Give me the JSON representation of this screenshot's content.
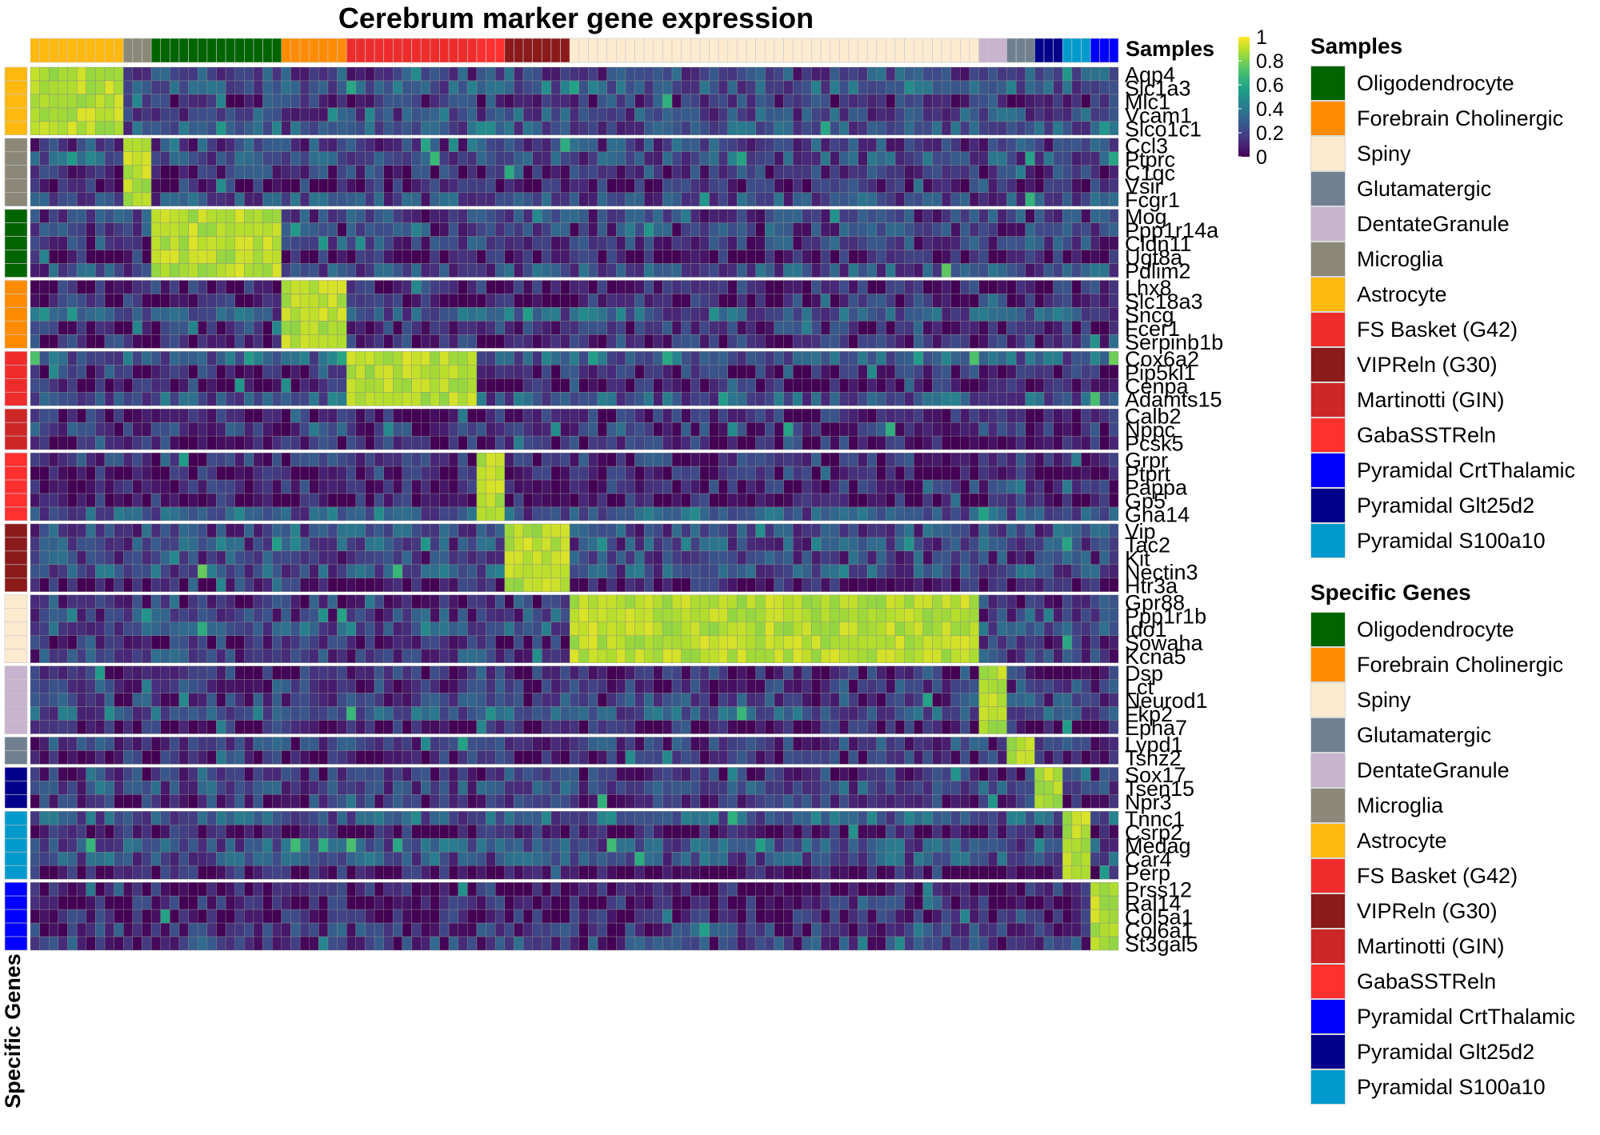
{
  "title": "Cerebrum marker gene expression",
  "samples_annotation_label": "Samples",
  "genes_annotation_label": "Specific Genes",
  "colorbar": {
    "ticks": [
      "1",
      "0.8",
      "0.6",
      "0.4",
      "0.2",
      "0"
    ],
    "range": [
      0,
      1
    ],
    "palette": "viridis"
  },
  "legends": [
    {
      "title": "Samples",
      "items": [
        {
          "label": "Oligodendrocyte",
          "color": "#006400"
        },
        {
          "label": "Forebrain Cholinergic",
          "color": "#FF8C00"
        },
        {
          "label": "Spiny",
          "color": "#FDEBD0"
        },
        {
          "label": "Glutamatergic",
          "color": "#708090"
        },
        {
          "label": "DentateGranule",
          "color": "#C8B4CE"
        },
        {
          "label": "Microglia",
          "color": "#8B8878"
        },
        {
          "label": "Astrocyte",
          "color": "#FFB90F"
        },
        {
          "label": "FS Basket (G42)",
          "color": "#EE2C2C"
        },
        {
          "label": "VIPReln (G30)",
          "color": "#8B1A1A"
        },
        {
          "label": "Martinotti (GIN)",
          "color": "#CD2626"
        },
        {
          "label": "GabaSSTReln",
          "color": "#FF3030"
        },
        {
          "label": "Pyramidal CrtThalamic",
          "color": "#0000FF"
        },
        {
          "label": "Pyramidal Glt25d2",
          "color": "#00008B"
        },
        {
          "label": "Pyramidal S100a10",
          "color": "#009ACD"
        }
      ]
    },
    {
      "title": "Specific Genes",
      "items": [
        {
          "label": "Oligodendrocyte",
          "color": "#006400"
        },
        {
          "label": "Forebrain Cholinergic",
          "color": "#FF8C00"
        },
        {
          "label": "Spiny",
          "color": "#FDEBD0"
        },
        {
          "label": "Glutamatergic",
          "color": "#708090"
        },
        {
          "label": "DentateGranule",
          "color": "#C8B4CE"
        },
        {
          "label": "Microglia",
          "color": "#8B8878"
        },
        {
          "label": "Astrocyte",
          "color": "#FFB90F"
        },
        {
          "label": "FS Basket (G42)",
          "color": "#EE2C2C"
        },
        {
          "label": "VIPReln (G30)",
          "color": "#8B1A1A"
        },
        {
          "label": "Martinotti (GIN)",
          "color": "#CD2626"
        },
        {
          "label": "GabaSSTReln",
          "color": "#FF3030"
        },
        {
          "label": "Pyramidal CrtThalamic",
          "color": "#0000FF"
        },
        {
          "label": "Pyramidal Glt25d2",
          "color": "#00008B"
        },
        {
          "label": "Pyramidal S100a10",
          "color": "#009ACD"
        }
      ]
    }
  ],
  "chart_data": {
    "type": "heatmap",
    "title": "Cerebrum marker gene expression",
    "value_range": [
      0,
      1
    ],
    "color_scale": "viridis",
    "sample_groups": [
      {
        "group": "Astrocyte",
        "n": 10
      },
      {
        "group": "Microglia",
        "n": 3
      },
      {
        "group": "Oligodendrocyte",
        "n": 14
      },
      {
        "group": "Forebrain Cholinergic",
        "n": 7
      },
      {
        "group": "FS Basket (G42)",
        "n": 14
      },
      {
        "group": "GabaSSTReln",
        "n": 3
      },
      {
        "group": "VIPReln (G30)",
        "n": 7
      },
      {
        "group": "Spiny",
        "n": 44
      },
      {
        "group": "DentateGranule",
        "n": 3
      },
      {
        "group": "Glutamatergic",
        "n": 3
      },
      {
        "group": "Pyramidal Glt25d2",
        "n": 3
      },
      {
        "group": "Pyramidal S100a10",
        "n": 3
      },
      {
        "group": "Pyramidal CrtThalamic",
        "n": 3
      }
    ],
    "gene_groups": [
      {
        "group": "Astrocyte",
        "high_sample_group": "Astrocyte",
        "genes": [
          "Aqp4",
          "Slc1a3",
          "Mlc1",
          "Vcam1",
          "Slco1c1"
        ]
      },
      {
        "group": "Microglia",
        "high_sample_group": "Microglia",
        "genes": [
          "Ccl3",
          "Ptprc",
          "C1qc",
          "Vsir",
          "Fcgr1"
        ]
      },
      {
        "group": "Oligodendrocyte",
        "high_sample_group": "Oligodendrocyte",
        "genes": [
          "Mog",
          "Ppp1r14a",
          "Cldn11",
          "Ugt8a",
          "Pdlim2"
        ]
      },
      {
        "group": "Forebrain Cholinergic",
        "high_sample_group": "Forebrain Cholinergic",
        "genes": [
          "Lhx8",
          "Slc18a3",
          "Sncg",
          "Fcer1",
          "Serpinb1b"
        ]
      },
      {
        "group": "FS Basket (G42)",
        "high_sample_group": "FS Basket (G42)",
        "genes": [
          "Cox6a2",
          "Pip5kl1",
          "Cenpa",
          "Adamts15"
        ]
      },
      {
        "group": "Martinotti (GIN)",
        "high_sample_group": "Martinotti (GIN)",
        "genes": [
          "Calb2",
          "Nppc",
          "Pcsk5"
        ]
      },
      {
        "group": "GabaSSTReln",
        "high_sample_group": "GabaSSTReln",
        "genes": [
          "Grpr",
          "Ptprt",
          "Pappa",
          "Gp5",
          "Gna14"
        ]
      },
      {
        "group": "VIPReln (G30)",
        "high_sample_group": "VIPReln (G30)",
        "genes": [
          "Vip",
          "Tac2",
          "Kit",
          "Nectin3",
          "Htr3a"
        ]
      },
      {
        "group": "Spiny",
        "high_sample_group": "Spiny",
        "genes": [
          "Gpr88",
          "Ppp1r1b",
          "Ido1",
          "Sowaha",
          "Kcna5"
        ]
      },
      {
        "group": "DentateGranule",
        "high_sample_group": "DentateGranule",
        "genes": [
          "Dsp",
          "Lct",
          "Neurod1",
          "Fkp2",
          "Epha7"
        ]
      },
      {
        "group": "Glutamatergic",
        "high_sample_group": "Glutamatergic",
        "genes": [
          "Lypd1",
          "Tshz2"
        ]
      },
      {
        "group": "Pyramidal Glt25d2",
        "high_sample_group": "Pyramidal Glt25d2",
        "genes": [
          "Sox17",
          "Tsen15",
          "Npr3"
        ]
      },
      {
        "group": "Pyramidal S100a10",
        "high_sample_group": "Pyramidal S100a10",
        "genes": [
          "Tnnc1",
          "Csrp2",
          "Medag",
          "Car4",
          "Perp"
        ]
      },
      {
        "group": "Pyramidal CrtThalamic",
        "high_sample_group": "Pyramidal CrtThalamic",
        "genes": [
          "Prss12",
          "Ral14",
          "Col5a1",
          "Col6a1",
          "St3gal5"
        ]
      }
    ],
    "in_group_value_approx": 0.95,
    "background_value_approx": 0.2
  }
}
